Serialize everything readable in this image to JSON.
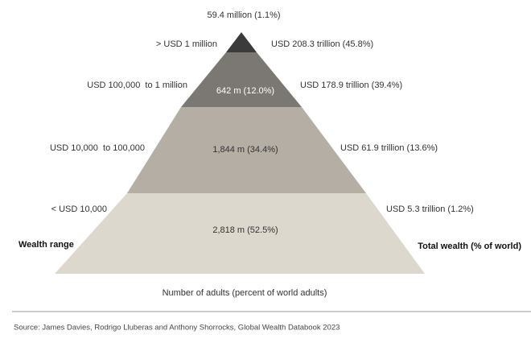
{
  "top_label": "59.4 million (1.1%)",
  "tiers": [
    {
      "wealth_range": "> USD 1 million",
      "total_wealth": "USD 208.3 trillion (45.8%)"
    },
    {
      "wealth_range": "USD 100,000  to 1 million",
      "adults": "642 m (12.0%)",
      "total_wealth": "USD 178.9 trillion (39.4%)"
    },
    {
      "wealth_range": "USD 10,000  to 100,000",
      "adults": "1,844 m (34.4%)",
      "total_wealth": "USD 61.9 trillion (13.6%)"
    },
    {
      "wealth_range": "< USD 10,000",
      "adults": "2,818 m (52.5%)",
      "total_wealth": "USD 5.3 trillion (1.2%)"
    }
  ],
  "left_heading": "Wealth range",
  "right_heading": "Total wealth (% of world)",
  "bottom_label": "Number of adults (percent of world adults)",
  "source": "Source: James Davies, Rodrigo Lluberas and Anthony Shorrocks, Global Wealth Databook 2023"
}
